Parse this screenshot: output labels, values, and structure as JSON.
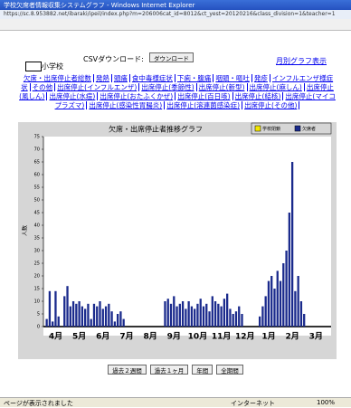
{
  "window": {
    "title": "学校欠席者情報収集システムグラフ - Windows Internet Explorer",
    "url": "https://sc.8.953882.net/ibaraki/ipeil/index.php?m=206006cat_id=8012&ct_yest=20120216&class_division=1&teacher=1",
    "status": "ページが表示されました",
    "zone": "インターネット",
    "zoom": "100%"
  },
  "page": {
    "school": "小学校",
    "csv_label": "CSVダウンロード:",
    "csv_button": "ダウンロード",
    "monthly_link": "月別グラフ表示",
    "links": [
      "欠席・出席停止者総数",
      "発熱",
      "頭痛",
      "食中毒様症状",
      "下痢・腹痛",
      "咽頭・嘔吐",
      "発疹",
      "インフルエンザ様症状",
      "その他",
      "出席停止(インフルエンザ)",
      "出席停止(季節性)",
      "出席停止(新型)",
      "出席停止(麻しん)",
      "出席停止(風しん)",
      "出席停止(水痘)",
      "出席停止(おたふくかぜ)",
      "出席停止(百日咳)",
      "出席停止(結核)",
      "出席停止(マイコプラズマ)",
      "出席停止(感染性胃腸炎)",
      "出席停止(溶連菌感染症)",
      "出席停止(その他)"
    ],
    "buttons": [
      "過去２週間",
      "過去１ヶ月",
      "年間",
      "全期間"
    ]
  },
  "chart_data": {
    "type": "bar",
    "title": "欠席・出席停止者推移グラフ",
    "ylabel": "人数",
    "legend": [
      {
        "name": "学校閉鎖",
        "color": "#f2e600"
      },
      {
        "name": "欠席者",
        "color": "#1a2a8c"
      }
    ],
    "color": "#1a2a8c",
    "categories": [
      "4月",
      null,
      null,
      null,
      null,
      null,
      null,
      null,
      "5月",
      null,
      null,
      null,
      null,
      null,
      null,
      null,
      "6月",
      null,
      null,
      null,
      null,
      null,
      null,
      null,
      "7月",
      null,
      null,
      null,
      null,
      null,
      null,
      null,
      "8月",
      null,
      null,
      null,
      null,
      null,
      null,
      null,
      "9月",
      null,
      null,
      null,
      null,
      null,
      null,
      null,
      "10月",
      null,
      null,
      null,
      null,
      null,
      null,
      null,
      "11月",
      null,
      null,
      null,
      null,
      null,
      null,
      null,
      "12月",
      null,
      null,
      null,
      null,
      null,
      null,
      null,
      "1月",
      null,
      null,
      null,
      null,
      null,
      null,
      null,
      "2月",
      null,
      null,
      null,
      null,
      null,
      null,
      null,
      "3月",
      null,
      null,
      null,
      null,
      null,
      null,
      null
    ],
    "values": [
      3,
      14,
      2,
      14,
      4,
      0,
      12,
      16,
      8,
      10,
      9,
      10,
      8,
      7,
      9,
      3,
      9,
      8,
      10,
      7,
      8,
      9,
      6,
      2,
      5,
      6,
      3,
      0,
      0,
      0,
      0,
      0,
      0,
      0,
      0,
      0,
      0,
      0,
      0,
      0,
      10,
      11,
      9,
      12,
      8,
      9,
      10,
      7,
      10,
      8,
      7,
      9,
      11,
      8,
      9,
      6,
      12,
      10,
      9,
      8,
      11,
      13,
      7,
      5,
      6,
      8,
      5,
      0,
      0,
      0,
      0,
      0,
      4,
      8,
      12,
      18,
      20,
      15,
      22,
      18,
      25,
      30,
      45,
      65,
      14,
      20,
      10,
      5,
      0,
      0,
      0,
      0,
      0,
      0,
      0,
      0
    ],
    "ylim": [
      0,
      75
    ],
    "yticks": [
      0,
      5,
      10,
      15,
      20,
      25,
      30,
      35,
      40,
      45,
      50,
      55,
      60,
      65,
      70,
      75
    ],
    "grid": false
  }
}
